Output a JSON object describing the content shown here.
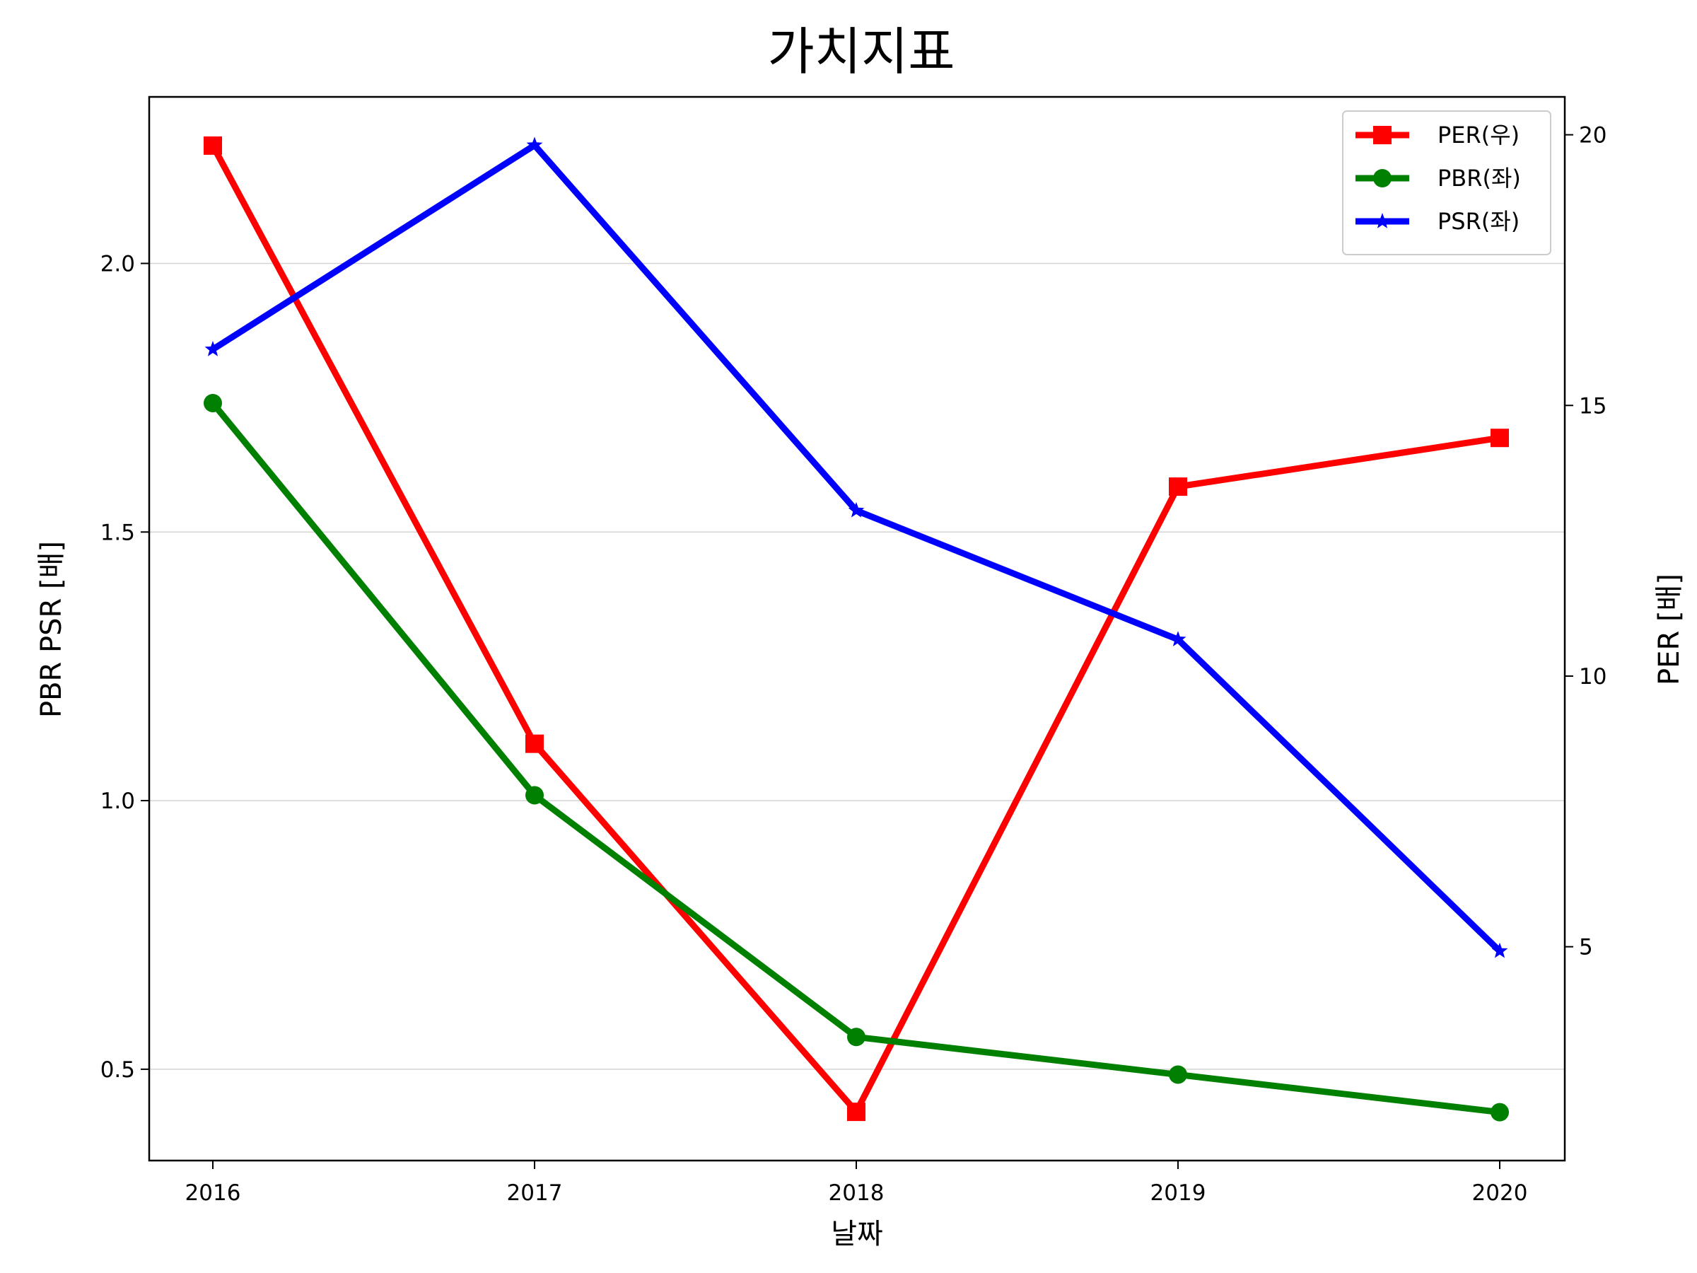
{
  "chart_data": {
    "type": "line",
    "title": "가치지표",
    "xlabel": "날짜",
    "ylabel_left": "PBR PSR [배]",
    "ylabel_right": "PER [배]",
    "categories": [
      "2016",
      "2017",
      "2018",
      "2019",
      "2020"
    ],
    "left_axis": {
      "ylim": [
        0.33,
        2.31
      ],
      "ticks": [
        "0.5",
        "1.0",
        "1.5",
        "2.0"
      ],
      "tick_values": [
        0.5,
        1.0,
        1.5,
        2.0
      ],
      "grid": true,
      "label_color": "#008000"
    },
    "right_axis": {
      "ylim": [
        1.05,
        20.7
      ],
      "ticks": [
        "5",
        "10",
        "15",
        "20"
      ],
      "tick_values": [
        5,
        10,
        15,
        20
      ],
      "label_color": "#ff0000"
    },
    "series": [
      {
        "name": "PER(우)",
        "axis": "right",
        "color": "#ff0000",
        "marker": "square",
        "values": [
          19.8,
          8.75,
          1.95,
          13.5,
          14.4
        ]
      },
      {
        "name": "PBR(좌)",
        "axis": "left",
        "color": "#008000",
        "marker": "circle",
        "values": [
          1.74,
          1.01,
          0.56,
          0.49,
          0.42
        ]
      },
      {
        "name": "PSR(좌)",
        "axis": "left",
        "color": "#0000ff",
        "marker": "star",
        "values": [
          1.84,
          2.22,
          1.54,
          1.3,
          0.72
        ]
      }
    ],
    "legend_position": "top-right"
  }
}
